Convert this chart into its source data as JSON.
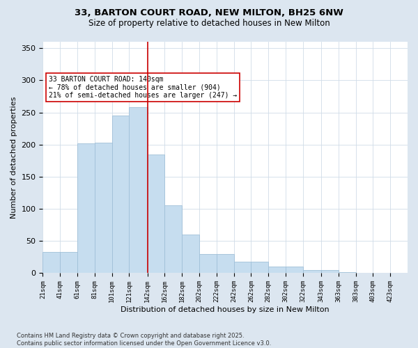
{
  "title": "33, BARTON COURT ROAD, NEW MILTON, BH25 6NW",
  "subtitle": "Size of property relative to detached houses in New Milton",
  "xlabel": "Distribution of detached houses by size in New Milton",
  "ylabel": "Number of detached properties",
  "bins": [
    "21sqm",
    "41sqm",
    "61sqm",
    "81sqm",
    "101sqm",
    "121sqm",
    "142sqm",
    "162sqm",
    "182sqm",
    "202sqm",
    "222sqm",
    "242sqm",
    "262sqm",
    "282sqm",
    "302sqm",
    "322sqm",
    "343sqm",
    "363sqm",
    "383sqm",
    "403sqm",
    "423sqm"
  ],
  "bin_edges": [
    21,
    41,
    61,
    81,
    101,
    121,
    142,
    162,
    182,
    202,
    222,
    242,
    262,
    282,
    302,
    322,
    343,
    363,
    383,
    403,
    423
  ],
  "bar_heights": [
    33,
    33,
    202,
    203,
    245,
    258,
    185,
    106,
    60,
    30,
    30,
    18,
    18,
    10,
    10,
    5,
    5,
    2,
    0,
    0,
    1
  ],
  "bar_color": "#c6ddef",
  "bar_edge_color": "#a0c0d8",
  "vline_x": 142,
  "vline_color": "#cc0000",
  "annotation_text": "33 BARTON COURT ROAD: 140sqm\n← 78% of detached houses are smaller (904)\n21% of semi-detached houses are larger (247) →",
  "annotation_box_color": "#cc0000",
  "ylim": [
    0,
    360
  ],
  "yticks": [
    0,
    50,
    100,
    150,
    200,
    250,
    300,
    350
  ],
  "footer_text": "Contains HM Land Registry data © Crown copyright and database right 2025.\nContains public sector information licensed under the Open Government Licence v3.0.",
  "bg_color": "#dce6f0",
  "plot_bg_color": "#ffffff",
  "title_fontsize": 9.5,
  "subtitle_fontsize": 8.5,
  "ylabel_fontsize": 8,
  "xlabel_fontsize": 8,
  "tick_fontsize": 6.5,
  "ytick_fontsize": 8,
  "footer_fontsize": 6,
  "annot_fontsize": 7
}
